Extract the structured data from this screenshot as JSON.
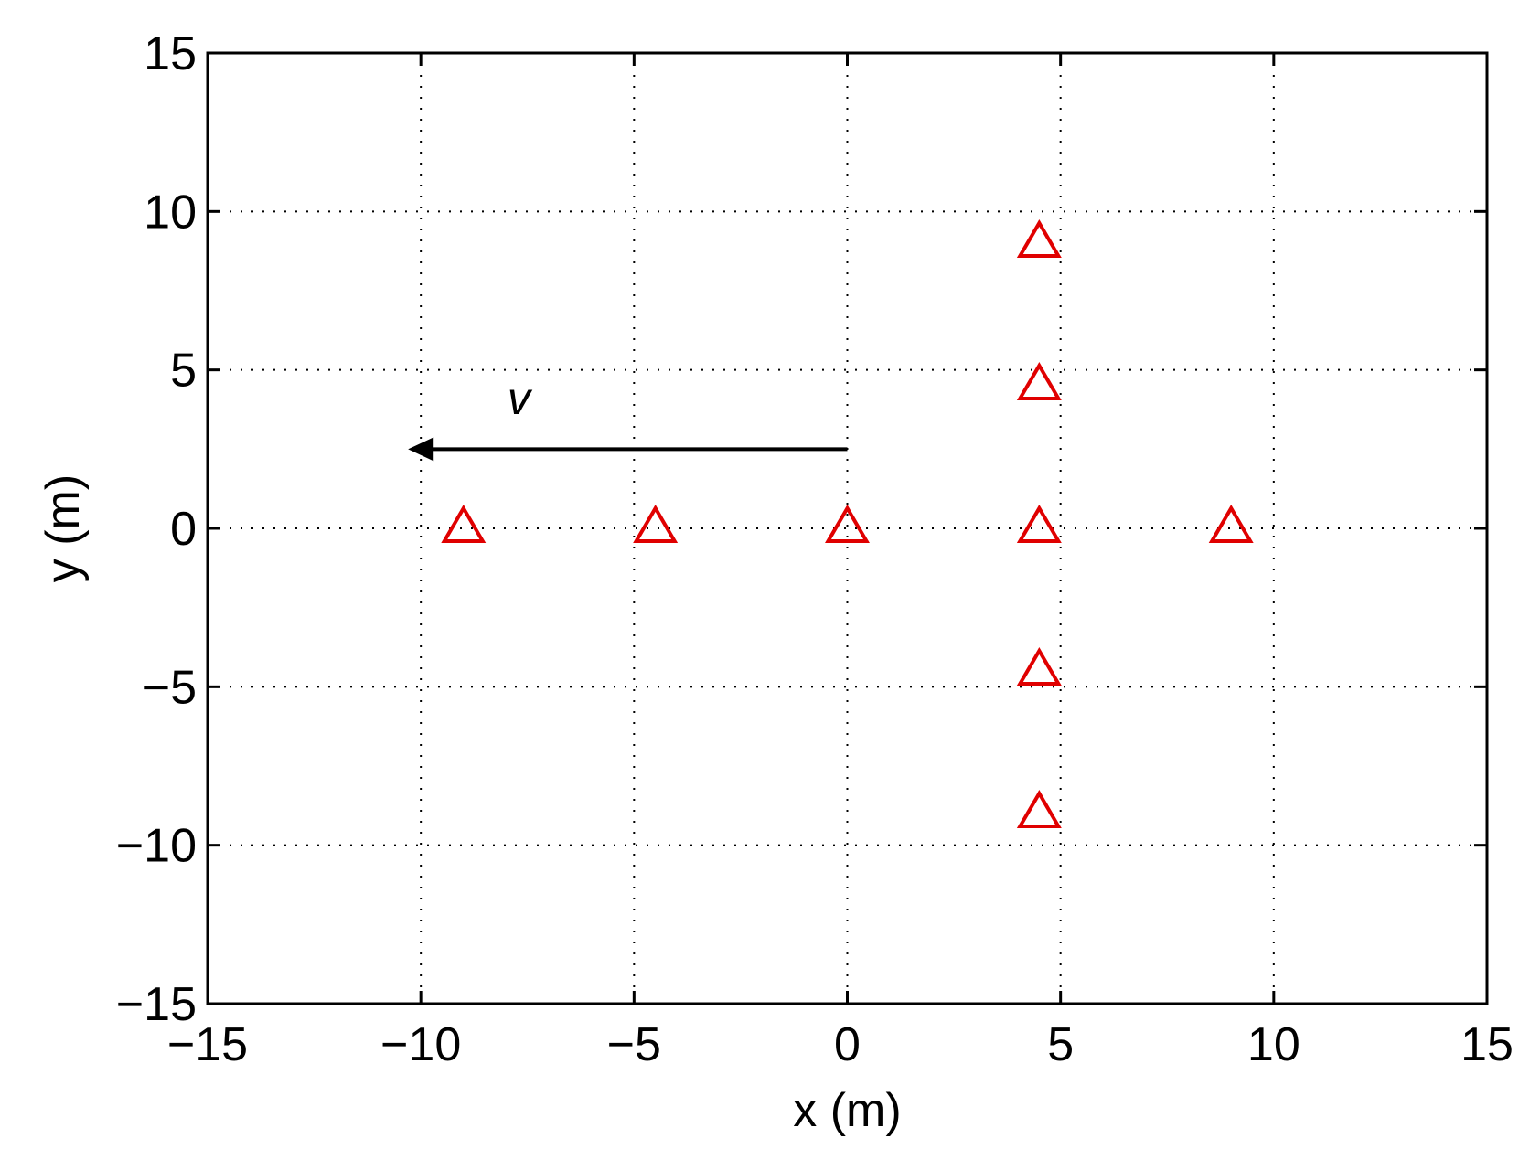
{
  "chart_data": {
    "type": "scatter",
    "title": "",
    "xlabel": "x (m)",
    "ylabel": "y (m)",
    "xlim": [
      -15,
      15
    ],
    "ylim": [
      -15,
      15
    ],
    "xticks": [
      -15,
      -10,
      -5,
      0,
      5,
      10,
      15
    ],
    "yticks": [
      -15,
      -10,
      -5,
      0,
      5,
      10,
      15
    ],
    "xtick_labels": [
      "−15",
      "−10",
      "−5",
      "0",
      "5",
      "10",
      "15"
    ],
    "ytick_labels": [
      "−15",
      "−10",
      "−5",
      "0",
      "5",
      "10",
      "15"
    ],
    "grid": true,
    "grid_style": "dotted",
    "series": [
      {
        "marker": "triangle-open",
        "color": "#e00000",
        "points": [
          {
            "x": -9,
            "y": 0
          },
          {
            "x": -4.5,
            "y": 0
          },
          {
            "x": 0,
            "y": 0
          },
          {
            "x": 4.5,
            "y": 0
          },
          {
            "x": 9,
            "y": 0
          },
          {
            "x": 4.5,
            "y": 9
          },
          {
            "x": 4.5,
            "y": 4.5
          },
          {
            "x": 4.5,
            "y": -4.5
          },
          {
            "x": 4.5,
            "y": -9
          }
        ]
      }
    ],
    "annotations": [
      {
        "type": "arrow",
        "from": [
          0,
          2.5
        ],
        "to": [
          -10.3,
          2.5
        ],
        "color": "#000000"
      },
      {
        "type": "text",
        "text": "v",
        "at": [
          -7.7,
          3.6
        ]
      }
    ]
  }
}
